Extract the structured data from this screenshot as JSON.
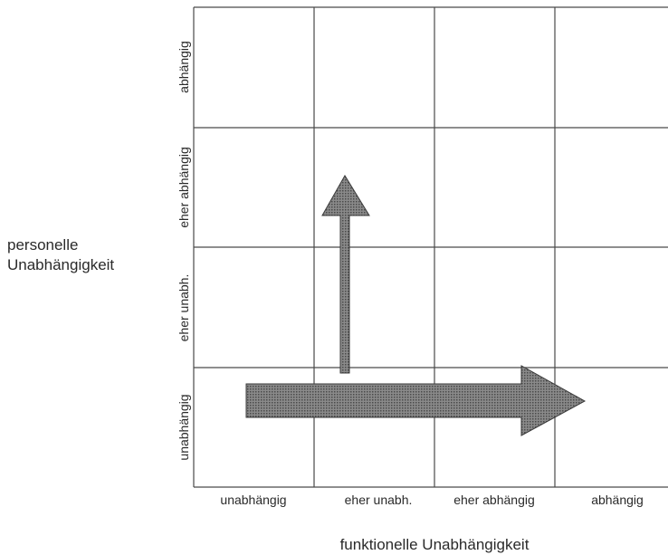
{
  "axes": {
    "y_title_line1": "personelle",
    "y_title_line2": "Unabhängigkeit",
    "x_title": "funktionelle Unabhängigkeit"
  },
  "rows": [
    "abhängig",
    "eher abhängig",
    "eher unabh.",
    "unabhängig"
  ],
  "columns": [
    "unabhängig",
    "eher unabh.",
    "eher abhängig",
    "abhängig"
  ],
  "colors": {
    "grid_line": "#4a4a4a",
    "arrow_fill": "#7a7a7a",
    "arrow_stroke": "#3a3a3a"
  }
}
